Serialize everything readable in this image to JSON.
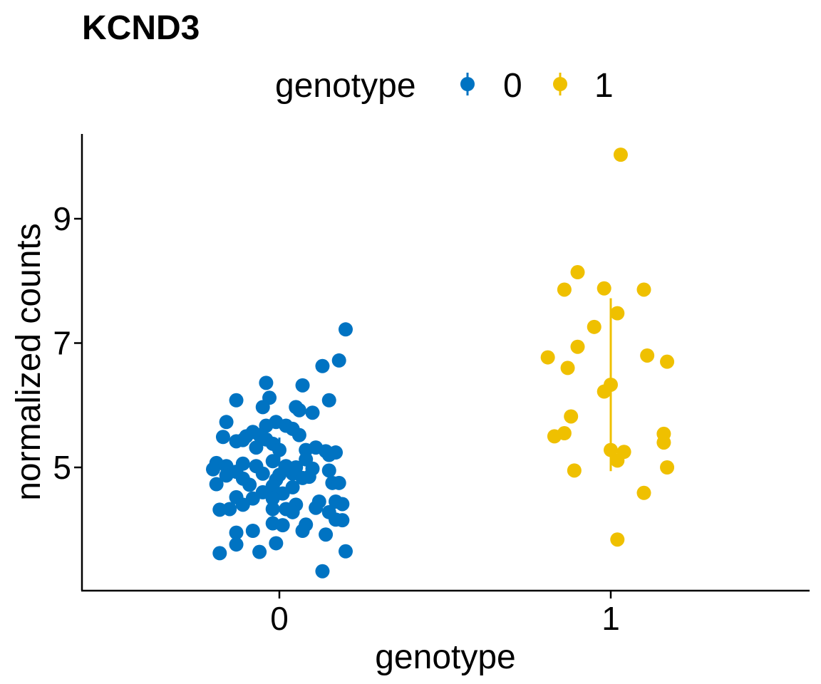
{
  "chart_data": {
    "type": "scatter",
    "title": "KCND3",
    "xlabel": "genotype",
    "ylabel": "normalized counts",
    "categories": [
      "0",
      "1"
    ],
    "x_ticks": [
      "0",
      "1"
    ],
    "y_ticks": [
      5,
      7,
      9
    ],
    "ylim": [
      3.0,
      10.4
    ],
    "grid": false,
    "legend": {
      "title": "genotype",
      "placement": "top",
      "entries": [
        {
          "label": "0",
          "color": "#0073C2"
        },
        {
          "label": "1",
          "color": "#EFC000"
        }
      ]
    },
    "series": [
      {
        "name": "0",
        "color": "#0073C2",
        "category": "0",
        "summary": {
          "low": 4.84,
          "high": 5.48
        },
        "points": [
          [
            0.2,
            7.22
          ],
          [
            0.18,
            6.72
          ],
          [
            0.13,
            6.63
          ],
          [
            0.15,
            6.08
          ],
          [
            -0.04,
            6.36
          ],
          [
            -0.03,
            6.12
          ],
          [
            0.07,
            6.32
          ],
          [
            -0.13,
            6.08
          ],
          [
            -0.05,
            5.97
          ],
          [
            0.05,
            5.97
          ],
          [
            0.06,
            5.92
          ],
          [
            0.1,
            5.88
          ],
          [
            -0.16,
            5.73
          ],
          [
            -0.01,
            5.73
          ],
          [
            -0.04,
            5.67
          ],
          [
            0.02,
            5.67
          ],
          [
            0.04,
            5.62
          ],
          [
            -0.08,
            5.57
          ],
          [
            -0.06,
            5.52
          ],
          [
            -0.1,
            5.5
          ],
          [
            0.06,
            5.52
          ],
          [
            -0.17,
            5.49
          ],
          [
            -0.13,
            5.42
          ],
          [
            -0.11,
            5.44
          ],
          [
            -0.04,
            5.45
          ],
          [
            -0.02,
            5.38
          ],
          [
            -0.07,
            5.32
          ],
          [
            0.0,
            5.28
          ],
          [
            0.08,
            5.28
          ],
          [
            0.11,
            5.32
          ],
          [
            0.14,
            5.26
          ],
          [
            0.17,
            5.24
          ],
          [
            0.15,
            5.2
          ],
          [
            0.08,
            5.13
          ],
          [
            -0.02,
            5.1
          ],
          [
            -0.11,
            5.06
          ],
          [
            -0.19,
            5.07
          ],
          [
            -0.16,
            5.02
          ],
          [
            -0.07,
            5.02
          ],
          [
            0.02,
            5.02
          ],
          [
            0.05,
            5.0
          ],
          [
            0.1,
            4.98
          ],
          [
            0.15,
            4.95
          ],
          [
            -0.2,
            4.97
          ],
          [
            -0.13,
            4.93
          ],
          [
            -0.05,
            4.9
          ],
          [
            0.0,
            4.88
          ],
          [
            0.04,
            4.9
          ],
          [
            0.09,
            4.85
          ],
          [
            -0.16,
            4.87
          ],
          [
            -0.11,
            4.82
          ],
          [
            -0.01,
            4.8
          ],
          [
            0.07,
            4.83
          ],
          [
            0.16,
            4.75
          ],
          [
            0.18,
            4.75
          ],
          [
            -0.19,
            4.73
          ],
          [
            -0.09,
            4.72
          ],
          [
            -0.02,
            4.7
          ],
          [
            0.04,
            4.68
          ],
          [
            -0.05,
            4.6
          ],
          [
            0.01,
            4.58
          ],
          [
            -0.13,
            4.52
          ],
          [
            -0.08,
            4.5
          ],
          [
            -0.02,
            4.5
          ],
          [
            0.12,
            4.45
          ],
          [
            0.17,
            4.45
          ],
          [
            -0.11,
            4.4
          ],
          [
            0.05,
            4.4
          ],
          [
            -0.15,
            4.33
          ],
          [
            -0.18,
            4.32
          ],
          [
            -0.02,
            4.33
          ],
          [
            0.02,
            4.33
          ],
          [
            0.04,
            4.28
          ],
          [
            0.11,
            4.35
          ],
          [
            0.15,
            4.28
          ],
          [
            0.19,
            4.41
          ],
          [
            0.19,
            4.15
          ],
          [
            0.17,
            4.16
          ],
          [
            -0.02,
            4.1
          ],
          [
            0.01,
            4.07
          ],
          [
            0.08,
            4.08
          ],
          [
            0.07,
            3.98
          ],
          [
            -0.08,
            3.98
          ],
          [
            -0.13,
            3.95
          ],
          [
            0.14,
            3.92
          ],
          [
            -0.01,
            3.78
          ],
          [
            -0.13,
            3.76
          ],
          [
            -0.06,
            3.64
          ],
          [
            -0.18,
            3.62
          ],
          [
            0.2,
            3.65
          ],
          [
            0.13,
            3.33
          ]
        ]
      },
      {
        "name": "1",
        "color": "#EFC000",
        "category": "1",
        "summary": {
          "low": 4.94,
          "high": 7.72
        },
        "points": [
          [
            1.03,
            10.03
          ],
          [
            0.9,
            8.14
          ],
          [
            0.86,
            7.86
          ],
          [
            0.98,
            7.88
          ],
          [
            1.1,
            7.86
          ],
          [
            1.02,
            7.48
          ],
          [
            0.95,
            7.26
          ],
          [
            0.9,
            6.94
          ],
          [
            0.81,
            6.77
          ],
          [
            1.11,
            6.8
          ],
          [
            1.17,
            6.7
          ],
          [
            0.87,
            6.6
          ],
          [
            1.0,
            6.33
          ],
          [
            0.98,
            6.22
          ],
          [
            0.88,
            5.82
          ],
          [
            0.83,
            5.5
          ],
          [
            0.86,
            5.55
          ],
          [
            1.16,
            5.54
          ],
          [
            1.16,
            5.4
          ],
          [
            1.0,
            5.28
          ],
          [
            1.04,
            5.25
          ],
          [
            1.02,
            5.11
          ],
          [
            0.89,
            4.95
          ],
          [
            1.17,
            5.0
          ],
          [
            1.1,
            4.59
          ],
          [
            1.02,
            3.84
          ]
        ]
      }
    ]
  }
}
